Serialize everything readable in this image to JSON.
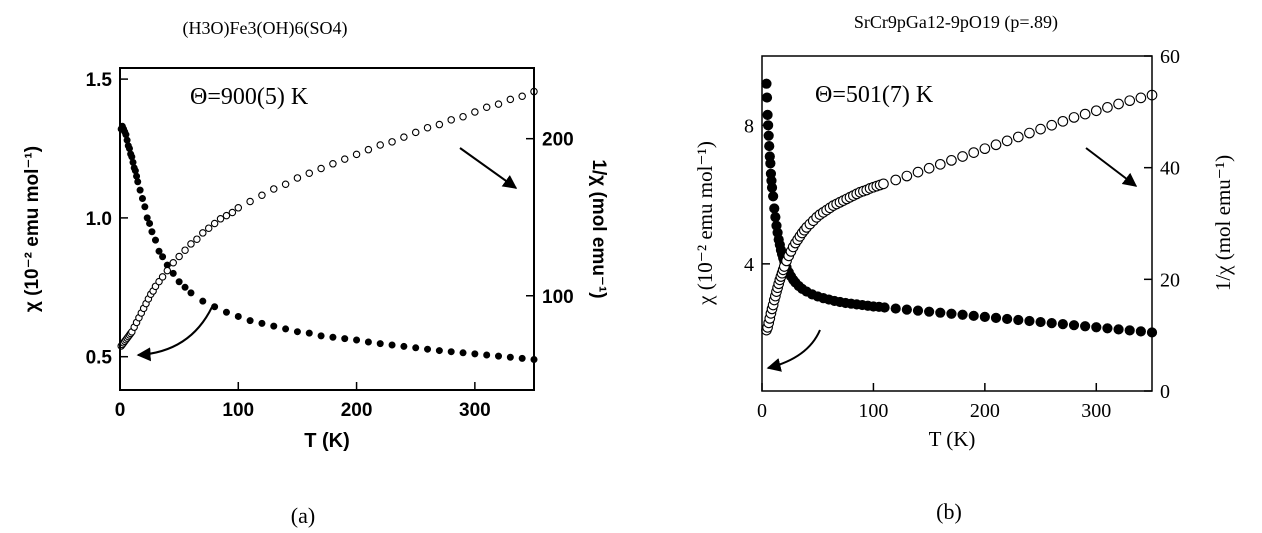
{
  "chart_data": [
    {
      "type": "scatter",
      "title": "(H3O)Fe3(OH)6(SO4)",
      "annotation": "Θ=900(5) K",
      "panel_label": "(a)",
      "xlabel": "T (K)",
      "ylabel_left": "χ (10⁻² emu mol⁻¹)",
      "ylabel_right": "1/χ (mol emu⁻¹)",
      "xlim": [
        0,
        350
      ],
      "ylim_left": [
        0.38,
        1.54
      ],
      "ylim_right": [
        40,
        245
      ],
      "xticks": [
        "0",
        "100",
        "200",
        "300"
      ],
      "yticks_left": [
        "0.5",
        "1.0",
        "1.5"
      ],
      "yticks_right": [
        "100",
        "200"
      ],
      "series": [
        {
          "axis": "left",
          "marker": "filled",
          "points": [
            [
              1,
              1.32
            ],
            [
              2,
              1.33
            ],
            [
              3,
              1.32
            ],
            [
              4,
              1.31
            ],
            [
              5,
              1.3
            ],
            [
              6,
              1.28
            ],
            [
              7,
              1.26
            ],
            [
              8,
              1.25
            ],
            [
              9,
              1.23
            ],
            [
              10,
              1.22
            ],
            [
              11,
              1.2
            ],
            [
              12,
              1.18
            ],
            [
              13,
              1.17
            ],
            [
              14,
              1.15
            ],
            [
              15,
              1.13
            ],
            [
              17,
              1.1
            ],
            [
              19,
              1.07
            ],
            [
              21,
              1.04
            ],
            [
              23,
              1.0
            ],
            [
              25,
              0.98
            ],
            [
              27,
              0.95
            ],
            [
              30,
              0.92
            ],
            [
              33,
              0.88
            ],
            [
              36,
              0.86
            ],
            [
              40,
              0.83
            ],
            [
              45,
              0.8
            ],
            [
              50,
              0.77
            ],
            [
              55,
              0.75
            ],
            [
              60,
              0.73
            ],
            [
              70,
              0.7
            ],
            [
              80,
              0.68
            ],
            [
              90,
              0.66
            ],
            [
              100,
              0.645
            ],
            [
              110,
              0.63
            ],
            [
              120,
              0.62
            ],
            [
              130,
              0.61
            ],
            [
              140,
              0.6
            ],
            [
              150,
              0.59
            ],
            [
              160,
              0.585
            ],
            [
              170,
              0.575
            ],
            [
              180,
              0.57
            ],
            [
              190,
              0.565
            ],
            [
              200,
              0.56
            ],
            [
              210,
              0.553
            ],
            [
              220,
              0.547
            ],
            [
              230,
              0.542
            ],
            [
              240,
              0.537
            ],
            [
              250,
              0.532
            ],
            [
              260,
              0.527
            ],
            [
              270,
              0.522
            ],
            [
              280,
              0.518
            ],
            [
              290,
              0.514
            ],
            [
              300,
              0.51
            ],
            [
              310,
              0.506
            ],
            [
              320,
              0.502
            ],
            [
              330,
              0.498
            ],
            [
              340,
              0.494
            ],
            [
              350,
              0.49
            ]
          ]
        },
        {
          "axis": "right",
          "marker": "open",
          "points": [
            [
              1,
              68
            ],
            [
              2,
              69
            ],
            [
              3,
              70
            ],
            [
              4,
              71
            ],
            [
              5,
              72
            ],
            [
              6,
              73
            ],
            [
              7,
              74
            ],
            [
              8,
              75
            ],
            [
              9,
              76
            ],
            [
              10,
              77
            ],
            [
              12,
              80
            ],
            [
              14,
              83
            ],
            [
              16,
              86
            ],
            [
              18,
              89
            ],
            [
              20,
              92
            ],
            [
              22,
              95
            ],
            [
              24,
              98
            ],
            [
              26,
              101
            ],
            [
              28,
              103
            ],
            [
              30,
              106
            ],
            [
              33,
              109
            ],
            [
              36,
              112
            ],
            [
              40,
              116
            ],
            [
              45,
              121
            ],
            [
              50,
              125
            ],
            [
              55,
              129
            ],
            [
              60,
              133
            ],
            [
              65,
              136
            ],
            [
              70,
              140
            ],
            [
              75,
              143
            ],
            [
              80,
              146
            ],
            [
              85,
              149
            ],
            [
              90,
              151
            ],
            [
              95,
              153
            ],
            [
              100,
              156
            ],
            [
              110,
              160
            ],
            [
              120,
              164
            ],
            [
              130,
              168
            ],
            [
              140,
              171
            ],
            [
              150,
              175
            ],
            [
              160,
              178
            ],
            [
              170,
              181
            ],
            [
              180,
              184
            ],
            [
              190,
              187
            ],
            [
              200,
              190
            ],
            [
              210,
              193
            ],
            [
              220,
              196
            ],
            [
              230,
              198
            ],
            [
              240,
              201
            ],
            [
              250,
              204
            ],
            [
              260,
              207
            ],
            [
              270,
              209
            ],
            [
              280,
              212
            ],
            [
              290,
              214
            ],
            [
              300,
              217
            ],
            [
              310,
              220
            ],
            [
              320,
              222
            ],
            [
              330,
              225
            ],
            [
              340,
              227
            ],
            [
              350,
              230
            ]
          ]
        }
      ]
    },
    {
      "type": "scatter",
      "title": "SrCr9pGa12-9pO19 (p=.89)",
      "annotation": "Θ=501(7) K",
      "panel_label": "(b)",
      "xlabel": "T (K)",
      "ylabel_left": "χ (10⁻² emu mol⁻¹)",
      "ylabel_right": "1/χ (mol emu⁻¹)",
      "xlim": [
        0,
        350
      ],
      "ylim_left": [
        0.33,
        10.0
      ],
      "ylim_right": [
        0,
        60
      ],
      "xticks": [
        "0",
        "100",
        "200",
        "300"
      ],
      "yticks_left": [
        "4",
        "8"
      ],
      "yticks_right": [
        "0",
        "20",
        "40",
        "60"
      ],
      "series": [
        {
          "axis": "left",
          "marker": "filled",
          "points": [
            [
              4,
              9.2
            ],
            [
              4.5,
              8.8
            ],
            [
              5,
              8.3
            ],
            [
              5.5,
              8.0
            ],
            [
              6,
              7.7
            ],
            [
              6.5,
              7.4
            ],
            [
              7,
              7.1
            ],
            [
              7.5,
              6.9
            ],
            [
              8,
              6.6
            ],
            [
              8.5,
              6.4
            ],
            [
              9,
              6.2
            ],
            [
              10,
              5.95
            ],
            [
              11,
              5.6
            ],
            [
              12,
              5.35
            ],
            [
              13,
              5.1
            ],
            [
              14,
              4.9
            ],
            [
              15,
              4.7
            ],
            [
              16,
              4.55
            ],
            [
              17,
              4.4
            ],
            [
              18,
              4.28
            ],
            [
              19,
              4.17
            ],
            [
              20,
              4.07
            ],
            [
              22,
              3.9
            ],
            [
              24,
              3.76
            ],
            [
              26,
              3.64
            ],
            [
              28,
              3.54
            ],
            [
              30,
              3.46
            ],
            [
              33,
              3.36
            ],
            [
              36,
              3.28
            ],
            [
              40,
              3.2
            ],
            [
              45,
              3.12
            ],
            [
              50,
              3.06
            ],
            [
              55,
              3.01
            ],
            [
              60,
              2.97
            ],
            [
              65,
              2.93
            ],
            [
              70,
              2.9
            ],
            [
              75,
              2.87
            ],
            [
              80,
              2.85
            ],
            [
              85,
              2.83
            ],
            [
              90,
              2.81
            ],
            [
              95,
              2.79
            ],
            [
              100,
              2.77
            ],
            [
              105,
              2.76
            ],
            [
              110,
              2.74
            ],
            [
              120,
              2.71
            ],
            [
              130,
              2.68
            ],
            [
              140,
              2.65
            ],
            [
              150,
              2.62
            ],
            [
              160,
              2.59
            ],
            [
              170,
              2.56
            ],
            [
              180,
              2.53
            ],
            [
              190,
              2.5
            ],
            [
              200,
              2.47
            ],
            [
              210,
              2.44
            ],
            [
              220,
              2.41
            ],
            [
              230,
              2.38
            ],
            [
              240,
              2.35
            ],
            [
              250,
              2.32
            ],
            [
              260,
              2.29
            ],
            [
              270,
              2.26
            ],
            [
              280,
              2.23
            ],
            [
              290,
              2.2
            ],
            [
              300,
              2.17
            ],
            [
              310,
              2.14
            ],
            [
              320,
              2.11
            ],
            [
              330,
              2.08
            ],
            [
              340,
              2.05
            ],
            [
              350,
              2.02
            ]
          ]
        },
        {
          "axis": "right",
          "marker": "open",
          "points": [
            [
              4,
              10.9
            ],
            [
              5,
              11.4
            ],
            [
              6,
              12.2
            ],
            [
              7,
              13.0
            ],
            [
              8,
              13.9
            ],
            [
              9,
              14.7
            ],
            [
              10,
              15.4
            ],
            [
              11,
              16.3
            ],
            [
              12,
              17.0
            ],
            [
              13,
              17.8
            ],
            [
              14,
              18.5
            ],
            [
              15,
              19.2
            ],
            [
              16,
              19.9
            ],
            [
              17,
              20.5
            ],
            [
              18,
              21.1
            ],
            [
              19,
              21.7
            ],
            [
              20,
              22.3
            ],
            [
              22,
              23.3
            ],
            [
              24,
              24.2
            ],
            [
              26,
              25.0
            ],
            [
              28,
              25.8
            ],
            [
              30,
              26.5
            ],
            [
              32,
              27.1
            ],
            [
              34,
              27.7
            ],
            [
              36,
              28.3
            ],
            [
              38,
              28.8
            ],
            [
              40,
              29.3
            ],
            [
              43,
              29.9
            ],
            [
              46,
              30.5
            ],
            [
              49,
              31.1
            ],
            [
              52,
              31.6
            ],
            [
              55,
              32.0
            ],
            [
              58,
              32.4
            ],
            [
              61,
              32.8
            ],
            [
              64,
              33.2
            ],
            [
              67,
              33.5
            ],
            [
              70,
              33.8
            ],
            [
              73,
              34.1
            ],
            [
              76,
              34.4
            ],
            [
              79,
              34.7
            ],
            [
              82,
              35.0
            ],
            [
              85,
              35.3
            ],
            [
              88,
              35.6
            ],
            [
              91,
              35.8
            ],
            [
              94,
              36.0
            ],
            [
              97,
              36.3
            ],
            [
              100,
              36.5
            ],
            [
              103,
              36.7
            ],
            [
              106,
              36.9
            ],
            [
              109,
              37.1
            ],
            [
              120,
              37.8
            ],
            [
              130,
              38.5
            ],
            [
              140,
              39.2
            ],
            [
              150,
              39.9
            ],
            [
              160,
              40.6
            ],
            [
              170,
              41.3
            ],
            [
              180,
              42.0
            ],
            [
              190,
              42.7
            ],
            [
              200,
              43.4
            ],
            [
              210,
              44.1
            ],
            [
              220,
              44.8
            ],
            [
              230,
              45.5
            ],
            [
              240,
              46.2
            ],
            [
              250,
              46.9
            ],
            [
              260,
              47.6
            ],
            [
              270,
              48.3
            ],
            [
              280,
              49.0
            ],
            [
              290,
              49.6
            ],
            [
              300,
              50.2
            ],
            [
              310,
              50.8
            ],
            [
              320,
              51.4
            ],
            [
              330,
              52.0
            ],
            [
              340,
              52.5
            ],
            [
              350,
              53.0
            ]
          ]
        }
      ]
    }
  ]
}
